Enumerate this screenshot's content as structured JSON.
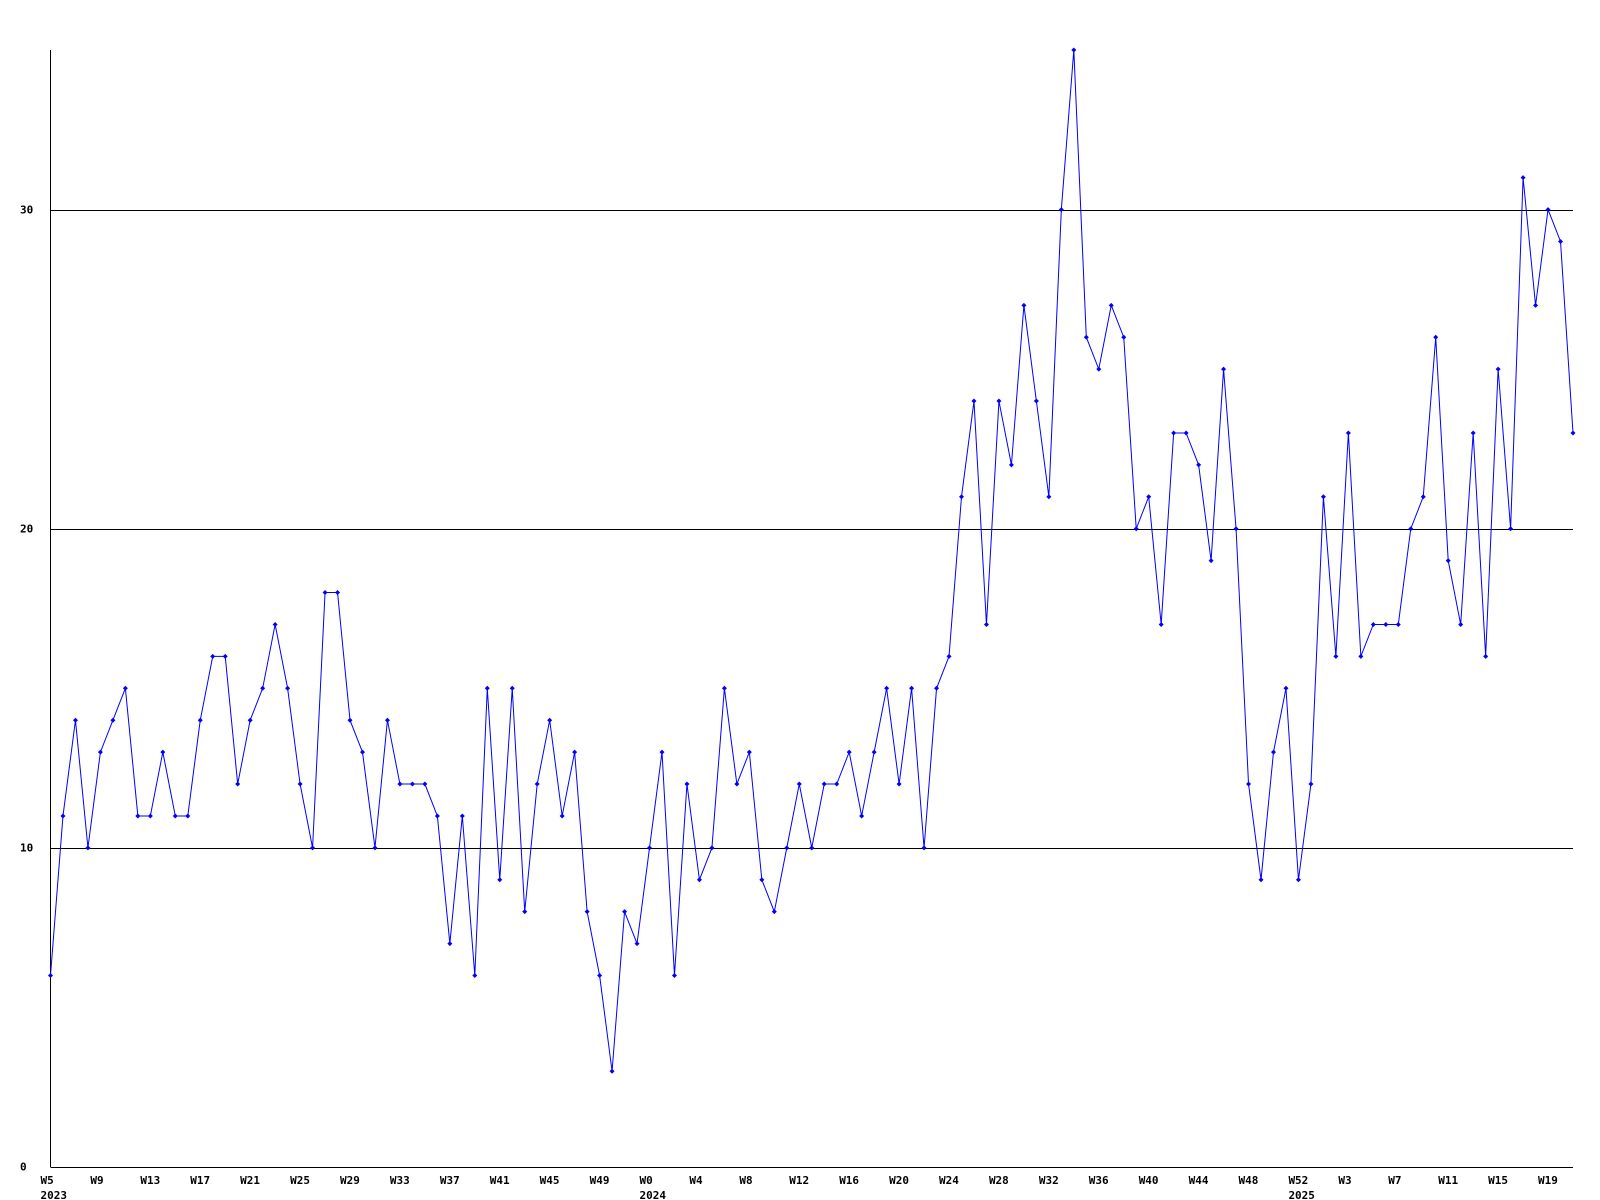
{
  "chart_data": {
    "type": "line",
    "categories": [
      "W5",
      null,
      null,
      null,
      "W9",
      null,
      null,
      null,
      "W13",
      null,
      null,
      null,
      "W17",
      null,
      null,
      null,
      "W21",
      null,
      null,
      null,
      "W25",
      null,
      null,
      null,
      "W29",
      null,
      null,
      null,
      "W33",
      null,
      null,
      null,
      "W37",
      null,
      null,
      null,
      "W41",
      null,
      null,
      null,
      "W45",
      null,
      null,
      null,
      "W49",
      null,
      null,
      null,
      "W0",
      null,
      null,
      null,
      "W4",
      null,
      null,
      null,
      "W8",
      null,
      null,
      null,
      "W12",
      null,
      null,
      null,
      "W16",
      null,
      null,
      null,
      "W20",
      null,
      null,
      null,
      "W24",
      null,
      null,
      null,
      "W28",
      null,
      null,
      null,
      "W32",
      null,
      null,
      null,
      "W36",
      null,
      null,
      null,
      "W40",
      null,
      null,
      null,
      "W44",
      null,
      null,
      null,
      "W48",
      null,
      null,
      null,
      "W52",
      null,
      null,
      null,
      "W3",
      null,
      null,
      null,
      "W7",
      null,
      null,
      null,
      "W11",
      null,
      null,
      null,
      "W15",
      null,
      null,
      null,
      "W19",
      null,
      null
    ],
    "year_labels": [
      {
        "index": 0,
        "label": "2023"
      },
      {
        "index": 48,
        "label": "2024"
      },
      {
        "index": 100,
        "label": "2025"
      }
    ],
    "series": [
      {
        "color": "#0000ff",
        "values": [
          6,
          11,
          14,
          10,
          13,
          14,
          15,
          11,
          11,
          13,
          11,
          11,
          14,
          16,
          16,
          12,
          14,
          15,
          17,
          15,
          12,
          10,
          18,
          18,
          14,
          13,
          10,
          14,
          12,
          12,
          12,
          11,
          7,
          11,
          6,
          15,
          9,
          15,
          8,
          12,
          14,
          11,
          13,
          8,
          6,
          3,
          8,
          7,
          10,
          13,
          6,
          12,
          9,
          10,
          15,
          12,
          13,
          9,
          8,
          10,
          12,
          10,
          12,
          12,
          13,
          11,
          13,
          15,
          12,
          15,
          10,
          15,
          16,
          21,
          24,
          17,
          24,
          22,
          27,
          24,
          21,
          30,
          35,
          26,
          25,
          27,
          26,
          20,
          21,
          17,
          23,
          23,
          22,
          19,
          25,
          20,
          12,
          9,
          13,
          15,
          9,
          12,
          21,
          16,
          23,
          16,
          17,
          17,
          17,
          20,
          21,
          26,
          19,
          17,
          23,
          16,
          25,
          20,
          31,
          27,
          30,
          29,
          23
        ]
      }
    ],
    "ylim": [
      0,
      35
    ],
    "yticks": [
      0,
      10,
      20,
      30
    ],
    "grid": true
  }
}
